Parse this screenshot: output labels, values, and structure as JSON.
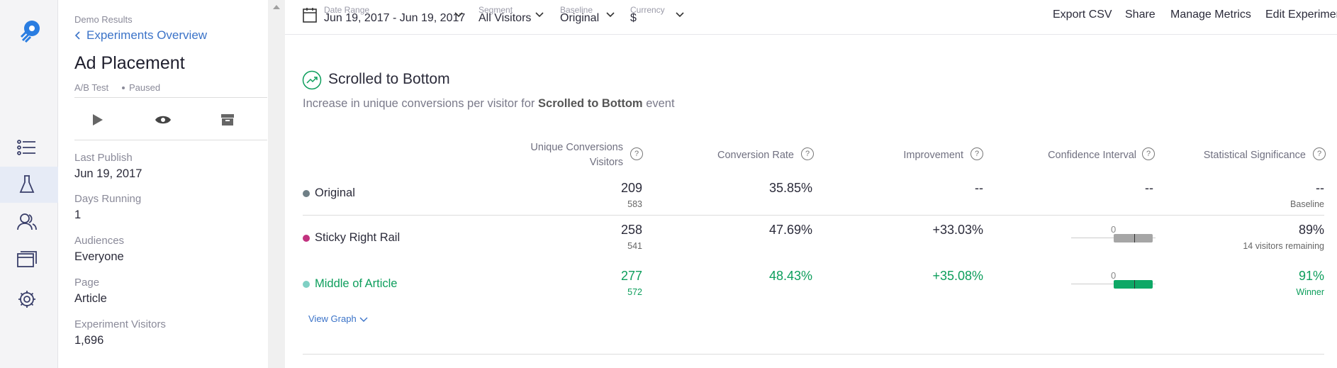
{
  "sidebar": {
    "demo_label": "Demo Results",
    "back_link": "Experiments Overview",
    "title": "Ad Placement",
    "experiment_type": "A/B Test",
    "status": "Paused",
    "details": [
      {
        "label": "Last Publish",
        "value": "Jun 19, 2017"
      },
      {
        "label": "Days Running",
        "value": "1"
      },
      {
        "label": "Audiences",
        "value": "Everyone"
      },
      {
        "label": "Page",
        "value": "Article"
      },
      {
        "label": "Experiment Visitors",
        "value": "1,696"
      }
    ]
  },
  "toolbar": {
    "filters": [
      {
        "label": "Date Range",
        "value": "Jun 19, 2017 - Jun 19, 2017"
      },
      {
        "label": "Segment",
        "value": "All Visitors"
      },
      {
        "label": "Baseline",
        "value": "Original"
      },
      {
        "label": "Currency",
        "value": "$"
      }
    ],
    "actions": [
      "Export CSV",
      "Share",
      "Manage Metrics",
      "Edit Experimen"
    ]
  },
  "metric": {
    "title": "Scrolled to Bottom",
    "description": {
      "prefix": "Increase in unique conversions per visitor for",
      "bold": "Scrolled to Bottom",
      "suffix": "event"
    },
    "columns": {
      "conversions": "Unique Conversions",
      "visitors": "Visitors",
      "rate": "Conversion Rate",
      "improvement": "Improvement",
      "interval": "Confidence Interval",
      "significance": "Statistical Significance"
    },
    "rows": [
      {
        "name": "Original",
        "dot_color": "#6f7f86",
        "conversions": "209",
        "visitors": "583",
        "rate": "35.85%",
        "improvement": "--",
        "interval": "--",
        "significance": "--",
        "note": "Baseline"
      },
      {
        "name": "Sticky Right Rail",
        "dot_color": "#c2327f",
        "conversions": "258",
        "visitors": "541",
        "rate": "47.69%",
        "improvement": "+33.03%",
        "interval": {
          "zero_label": "0",
          "color": "#a6a6a6"
        },
        "significance": "89%",
        "note": "14 visitors remaining"
      },
      {
        "name": "Middle of Article",
        "dot_color": "#7fd0c4",
        "text_color": "#0d9e5c",
        "conversions": "277",
        "visitors": "572",
        "rate": "48.43%",
        "improvement": "+35.08%",
        "interval": {
          "zero_label": "0",
          "color": "#0ea866"
        },
        "significance": "91%",
        "note": "Winner"
      }
    ],
    "view_graph": "View Graph"
  }
}
